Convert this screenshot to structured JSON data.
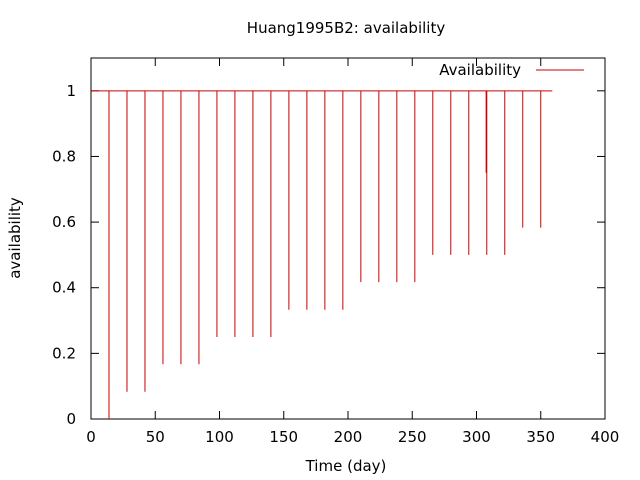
{
  "chart_data": {
    "type": "line",
    "title": "Huang1995B2: availability",
    "xlabel": "Time (day)",
    "ylabel": "availability",
    "xlim": [
      0,
      400
    ],
    "ylim": [
      0,
      1.1
    ],
    "x_ticks": [
      0,
      50,
      100,
      150,
      200,
      250,
      300,
      350,
      400
    ],
    "y_ticks": [
      0,
      0.2,
      0.4,
      0.6,
      0.8,
      1
    ],
    "x_tick_labels": [
      "0",
      "50",
      "100",
      "150",
      "200",
      "250",
      "300",
      "350",
      "400"
    ],
    "y_tick_labels": [
      "0",
      "0.2",
      "0.4",
      "0.6",
      "0.8",
      "1"
    ],
    "grid": false,
    "legend_position": "top-right",
    "series": [
      {
        "name": "Availability",
        "color": "#cc0000",
        "baseline": 1,
        "x_end": 359,
        "dips": [
          {
            "x": 14,
            "y": 0.0
          },
          {
            "x": 28,
            "y": 0.083
          },
          {
            "x": 42,
            "y": 0.083
          },
          {
            "x": 56,
            "y": 0.167
          },
          {
            "x": 70,
            "y": 0.167
          },
          {
            "x": 84,
            "y": 0.167
          },
          {
            "x": 98,
            "y": 0.25
          },
          {
            "x": 112,
            "y": 0.25
          },
          {
            "x": 126,
            "y": 0.25
          },
          {
            "x": 140,
            "y": 0.25
          },
          {
            "x": 154,
            "y": 0.333
          },
          {
            "x": 168,
            "y": 0.333
          },
          {
            "x": 182,
            "y": 0.333
          },
          {
            "x": 196,
            "y": 0.333
          },
          {
            "x": 210,
            "y": 0.417
          },
          {
            "x": 224,
            "y": 0.417
          },
          {
            "x": 238,
            "y": 0.417
          },
          {
            "x": 252,
            "y": 0.417
          },
          {
            "x": 266,
            "y": 0.5
          },
          {
            "x": 280,
            "y": 0.5
          },
          {
            "x": 294,
            "y": 0.5
          },
          {
            "x": 308,
            "y": 0.5
          },
          {
            "x": 322,
            "y": 0.5
          },
          {
            "x": 336,
            "y": 0.583
          },
          {
            "x": 350,
            "y": 0.583
          }
        ],
        "extra_marks": [
          {
            "x": 307.5,
            "y": 0.75
          }
        ]
      }
    ]
  }
}
